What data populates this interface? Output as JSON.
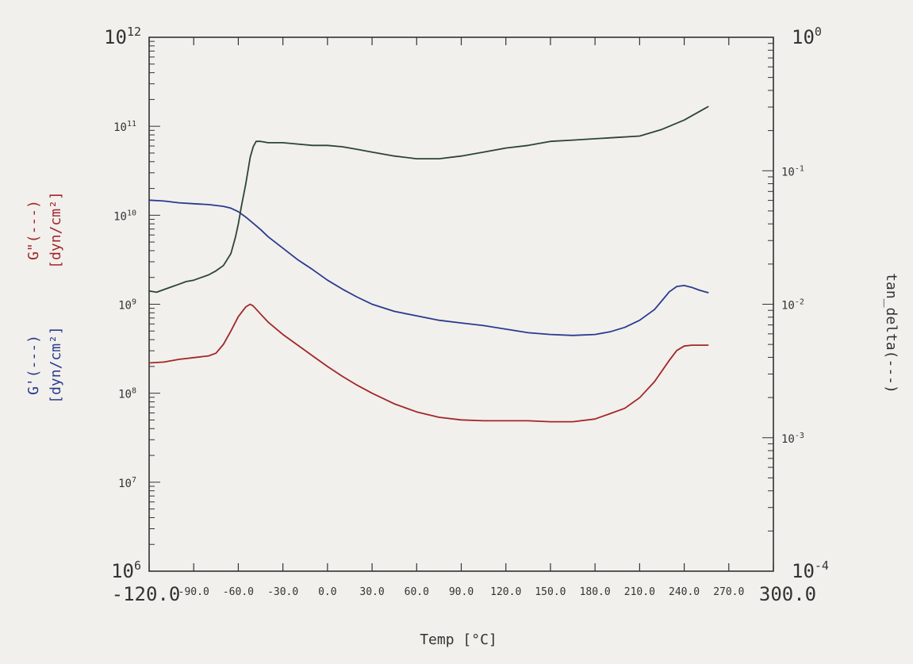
{
  "chart_data": {
    "type": "line",
    "xlabel": "Temp [°C]",
    "left_axis_labels": [
      {
        "text": "G'(---)",
        "color": "#2b3a8f"
      },
      {
        "text": "[dyn/cm²]",
        "color": "#2b3a8f"
      },
      {
        "text": "G\"(---)",
        "color": "#a3262a"
      },
      {
        "text": "[dyn/cm²]",
        "color": "#a3262a"
      }
    ],
    "right_label": "tan_delta(---)",
    "xlim": [
      -120,
      300
    ],
    "x_ticks": [
      {
        "value": -120,
        "label": "-120.0",
        "big": true
      },
      {
        "value": -90,
        "label": "-90.0"
      },
      {
        "value": -60,
        "label": "-60.0"
      },
      {
        "value": -30,
        "label": "-30.0"
      },
      {
        "value": 0,
        "label": "0.0"
      },
      {
        "value": 30,
        "label": "30.0"
      },
      {
        "value": 60,
        "label": "60.0"
      },
      {
        "value": 90,
        "label": "90.0"
      },
      {
        "value": 120,
        "label": "120.0"
      },
      {
        "value": 150,
        "label": "150.0"
      },
      {
        "value": 180,
        "label": "180.0"
      },
      {
        "value": 210,
        "label": "210.0"
      },
      {
        "value": 240,
        "label": "240.0"
      },
      {
        "value": 270,
        "label": "270.0"
      },
      {
        "value": 300,
        "label": "300.0",
        "big": true
      }
    ],
    "left_axis": {
      "scale": "log",
      "ylim_exp": [
        6,
        12
      ],
      "ticks": [
        {
          "exp": 12,
          "mant": "10",
          "sup": "12",
          "big": true
        },
        {
          "exp": 11,
          "mant": "10",
          "sup": "11"
        },
        {
          "exp": 10,
          "mant": "10",
          "sup": "10"
        },
        {
          "exp": 9,
          "mant": "10",
          "sup": "9"
        },
        {
          "exp": 8,
          "mant": "10",
          "sup": "8"
        },
        {
          "exp": 7,
          "mant": "10",
          "sup": "7"
        },
        {
          "exp": 6,
          "mant": "10",
          "sup": "6",
          "big": true
        }
      ]
    },
    "right_axis": {
      "scale": "log",
      "ylim_exp": [
        -4,
        0
      ],
      "ticks": [
        {
          "exp": 0,
          "mant": "10",
          "sup": "0",
          "big": true
        },
        {
          "exp": -1,
          "mant": "10",
          "sup": "-1"
        },
        {
          "exp": -2,
          "mant": "10",
          "sup": "-2"
        },
        {
          "exp": -3,
          "mant": "10",
          "sup": "-3"
        },
        {
          "exp": -4,
          "mant": "10",
          "sup": "-4",
          "big": true
        }
      ]
    },
    "grid": false,
    "series": [
      {
        "axis": "left",
        "color": "#2b3a8f",
        "x": [
          -120,
          -110,
          -100,
          -90,
          -80,
          -70,
          -65,
          -60,
          -55,
          -50,
          -45,
          -40,
          -30,
          -20,
          -10,
          0,
          10,
          20,
          30,
          45,
          60,
          75,
          90,
          105,
          120,
          135,
          150,
          165,
          180,
          190,
          200,
          210,
          220,
          225,
          230,
          235,
          240,
          245,
          250,
          256
        ],
        "y_exp": [
          10.17,
          10.16,
          10.14,
          10.13,
          10.12,
          10.1,
          10.08,
          10.04,
          9.98,
          9.91,
          9.84,
          9.76,
          9.63,
          9.5,
          9.39,
          9.27,
          9.17,
          9.08,
          9.0,
          8.92,
          8.87,
          8.82,
          8.79,
          8.76,
          8.72,
          8.68,
          8.66,
          8.65,
          8.66,
          8.69,
          8.74,
          8.82,
          8.94,
          9.04,
          9.14,
          9.2,
          9.21,
          9.19,
          9.16,
          9.13
        ]
      },
      {
        "axis": "left",
        "color": "#a3262a",
        "x": [
          -120,
          -110,
          -100,
          -90,
          -80,
          -75,
          -70,
          -65,
          -60,
          -55,
          -52,
          -50,
          -45,
          -40,
          -35,
          -30,
          -20,
          -10,
          0,
          10,
          20,
          30,
          45,
          60,
          75,
          90,
          105,
          120,
          135,
          150,
          165,
          180,
          190,
          200,
          210,
          220,
          230,
          235,
          240,
          245,
          250,
          256
        ],
        "y_exp": [
          8.34,
          8.35,
          8.38,
          8.4,
          8.42,
          8.45,
          8.55,
          8.7,
          8.86,
          8.97,
          9.0,
          8.98,
          8.89,
          8.8,
          8.73,
          8.66,
          8.54,
          8.42,
          8.3,
          8.19,
          8.09,
          8.0,
          7.88,
          7.79,
          7.73,
          7.7,
          7.69,
          7.69,
          7.69,
          7.68,
          7.68,
          7.71,
          7.77,
          7.83,
          7.95,
          8.13,
          8.37,
          8.48,
          8.53,
          8.54,
          8.54,
          8.54
        ]
      },
      {
        "axis": "right",
        "color": "#2e4533",
        "x": [
          -120,
          -115,
          -110,
          -105,
          -100,
          -95,
          -90,
          -85,
          -80,
          -75,
          -70,
          -65,
          -62,
          -60,
          -58,
          -55,
          -52,
          -50,
          -48,
          -45,
          -40,
          -30,
          -20,
          -10,
          0,
          10,
          20,
          30,
          45,
          60,
          75,
          90,
          105,
          120,
          135,
          150,
          165,
          180,
          195,
          210,
          225,
          240,
          256
        ],
        "y_exp": [
          -1.9,
          -1.91,
          -1.89,
          -1.87,
          -1.85,
          -1.83,
          -1.82,
          -1.8,
          -1.78,
          -1.75,
          -1.71,
          -1.62,
          -1.5,
          -1.4,
          -1.27,
          -1.1,
          -0.9,
          -0.82,
          -0.78,
          -0.78,
          -0.79,
          -0.79,
          -0.8,
          -0.81,
          -0.81,
          -0.82,
          -0.84,
          -0.86,
          -0.89,
          -0.91,
          -0.91,
          -0.89,
          -0.86,
          -0.83,
          -0.81,
          -0.78,
          -0.77,
          -0.76,
          -0.75,
          -0.74,
          -0.69,
          -0.62,
          -0.52
        ]
      }
    ]
  }
}
